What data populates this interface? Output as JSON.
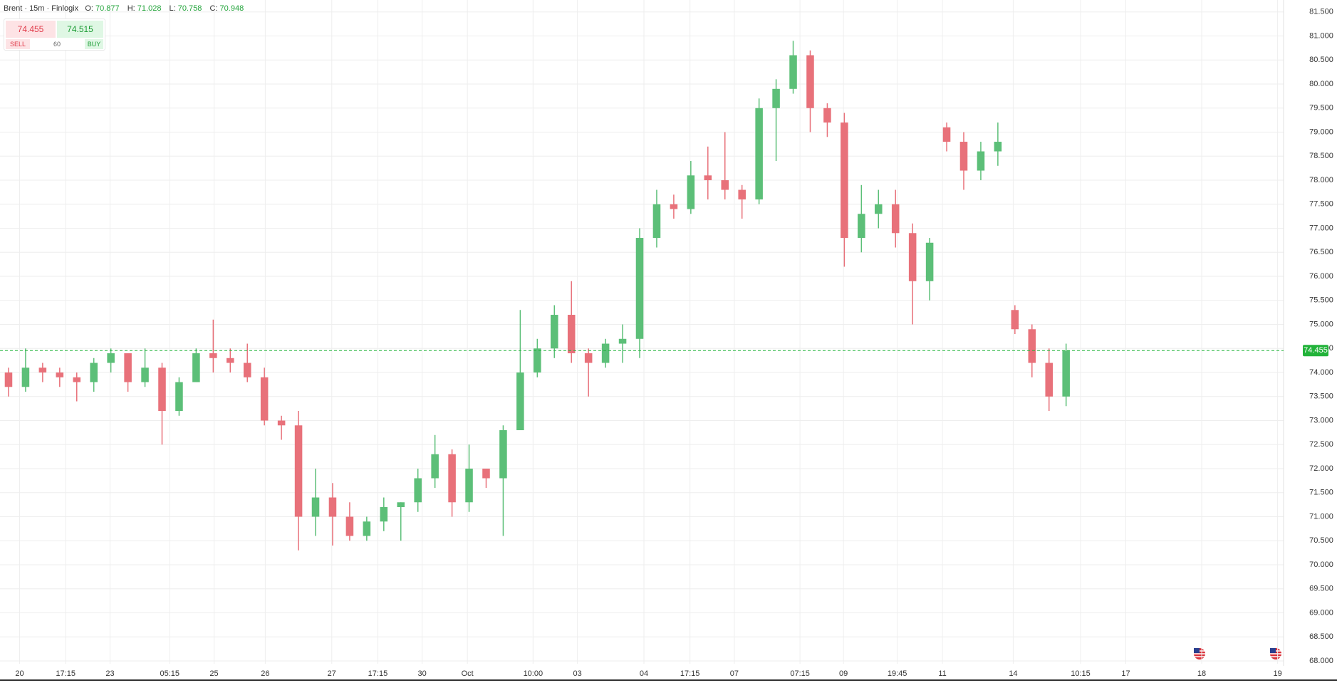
{
  "header": {
    "symbol": "Brent · 15m · Finlogix",
    "o_label": "O:",
    "o": 70.877,
    "h_label": "H:",
    "h": 71.028,
    "l_label": "L:",
    "l": 70.758,
    "c_label": "C:",
    "c": 70.948
  },
  "trade": {
    "sell_price": 74.455,
    "buy_price": 74.515,
    "sell": "SELL",
    "buy": "BUY",
    "quantity": 60
  },
  "chart_data": {
    "type": "candlestick",
    "up_color": "#5cbf78",
    "down_color": "#e8717a",
    "open": [
      74.0,
      73.7,
      74.1,
      74.0,
      73.9,
      73.8,
      74.2,
      74.4,
      73.8,
      74.1,
      73.2,
      73.8,
      74.4,
      74.3,
      74.2,
      73.9,
      73.0,
      72.9,
      71.0,
      71.4,
      71.0,
      70.6,
      70.9,
      71.2,
      71.3,
      71.8,
      72.3,
      71.3,
      72.0,
      71.8,
      72.8,
      74.0,
      74.5,
      75.2,
      74.4,
      74.2,
      74.6,
      74.7,
      76.8,
      77.5,
      77.4,
      78.1,
      78.0,
      77.8,
      77.6,
      79.5,
      79.9,
      80.6,
      79.5,
      79.2,
      76.8,
      77.3,
      77.5,
      76.9,
      75.9,
      79.1,
      78.8,
      78.2,
      78.6,
      75.3,
      74.9,
      74.2,
      73.5
    ],
    "high": [
      74.1,
      74.5,
      74.2,
      74.1,
      74.0,
      74.3,
      74.5,
      74.4,
      74.5,
      74.2,
      73.9,
      74.5,
      75.1,
      74.5,
      74.6,
      74.1,
      73.1,
      73.2,
      72.0,
      71.7,
      71.3,
      71.0,
      71.4,
      71.3,
      72.0,
      72.7,
      72.4,
      72.5,
      72.0,
      72.9,
      75.3,
      74.7,
      75.4,
      75.9,
      74.5,
      74.7,
      75.0,
      77.0,
      77.8,
      77.7,
      78.4,
      78.7,
      79.0,
      77.9,
      79.7,
      80.1,
      80.9,
      80.7,
      79.6,
      79.4,
      77.9,
      77.8,
      77.8,
      77.1,
      76.8,
      79.2,
      79.0,
      78.8,
      79.2,
      75.4,
      75.0,
      74.5,
      74.6
    ],
    "low": [
      73.5,
      73.6,
      73.8,
      73.7,
      73.4,
      73.6,
      74.0,
      73.6,
      73.7,
      72.5,
      73.1,
      73.8,
      74.0,
      74.0,
      73.8,
      72.9,
      72.6,
      70.3,
      70.6,
      70.4,
      70.5,
      70.5,
      70.7,
      70.5,
      71.1,
      71.6,
      71.0,
      71.1,
      71.6,
      70.6,
      72.8,
      73.9,
      74.3,
      74.2,
      73.5,
      74.1,
      74.2,
      74.3,
      76.6,
      77.2,
      77.3,
      77.6,
      77.6,
      77.2,
      77.5,
      78.4,
      79.8,
      79.0,
      78.9,
      76.2,
      76.5,
      77.0,
      76.6,
      75.0,
      75.5,
      78.6,
      77.8,
      78.0,
      78.3,
      74.8,
      73.9,
      73.2,
      73.3
    ],
    "close": [
      73.7,
      74.1,
      74.0,
      73.9,
      73.8,
      74.2,
      74.4,
      73.8,
      74.1,
      73.2,
      73.8,
      74.4,
      74.3,
      74.2,
      73.9,
      73.0,
      72.9,
      71.0,
      71.4,
      71.0,
      70.6,
      70.9,
      71.2,
      71.3,
      71.8,
      72.3,
      71.3,
      72.0,
      71.8,
      72.8,
      74.0,
      74.5,
      75.2,
      74.4,
      74.2,
      74.6,
      74.7,
      76.8,
      77.5,
      77.4,
      78.1,
      78.0,
      77.8,
      77.6,
      79.5,
      79.9,
      80.6,
      79.5,
      79.2,
      76.8,
      77.3,
      77.5,
      76.9,
      75.9,
      76.7,
      78.8,
      78.2,
      78.6,
      78.8,
      74.9,
      74.2,
      73.5,
      74.455
    ],
    "last_price": {
      "value": 74.455,
      "label": "74.455"
    },
    "last_color": "#22b33a",
    "xlim": [
      0,
      75.25
    ],
    "xticks": [
      {
        "value": 1.15,
        "label": "20"
      },
      {
        "value": 3.85,
        "label": "17:15"
      },
      {
        "value": 6.45,
        "label": "23"
      },
      {
        "value": 9.95,
        "label": "05:15"
      },
      {
        "value": 12.55,
        "label": "25"
      },
      {
        "value": 15.55,
        "label": "26"
      },
      {
        "value": 19.45,
        "label": "27"
      },
      {
        "value": 22.15,
        "label": "17:15"
      },
      {
        "value": 24.75,
        "label": "30"
      },
      {
        "value": 27.4,
        "label": "Oct"
      },
      {
        "value": 31.25,
        "label": "10:00"
      },
      {
        "value": 33.85,
        "label": "03"
      },
      {
        "value": 37.75,
        "label": "04"
      },
      {
        "value": 40.45,
        "label": "17:15"
      },
      {
        "value": 43.05,
        "label": "07"
      },
      {
        "value": 46.9,
        "label": "07:15"
      },
      {
        "value": 49.45,
        "label": "09"
      },
      {
        "value": 52.6,
        "label": "19:45"
      },
      {
        "value": 55.25,
        "label": "11"
      },
      {
        "value": 59.4,
        "label": "14"
      },
      {
        "value": 63.35,
        "label": "10:15"
      },
      {
        "value": 66,
        "label": "17"
      },
      {
        "value": 70.45,
        "label": "18"
      },
      {
        "value": 74.9,
        "label": "19"
      }
    ],
    "ylim": [
      68,
      81.5
    ],
    "yticks": [
      {
        "value": 68,
        "label": "68.000"
      },
      {
        "value": 68.5,
        "label": "68.500"
      },
      {
        "value": 69,
        "label": "69.000"
      },
      {
        "value": 69.5,
        "label": "69.500"
      },
      {
        "value": 70,
        "label": "70.000"
      },
      {
        "value": 70.5,
        "label": "70.500"
      },
      {
        "value": 71,
        "label": "71.000"
      },
      {
        "value": 71.5,
        "label": "71.500"
      },
      {
        "value": 72,
        "label": "72.000"
      },
      {
        "value": 72.5,
        "label": "72.500"
      },
      {
        "value": 73,
        "label": "73.000"
      },
      {
        "value": 73.5,
        "label": "73.500"
      },
      {
        "value": 74,
        "label": "74.000"
      },
      {
        "value": 74.5,
        "label": "74.500"
      },
      {
        "value": 75,
        "label": "75.000"
      },
      {
        "value": 75.5,
        "label": "75.500"
      },
      {
        "value": 76,
        "label": "76.000"
      },
      {
        "value": 76.5,
        "label": "76.500"
      },
      {
        "value": 77,
        "label": "77.000"
      },
      {
        "value": 77.5,
        "label": "77.500"
      },
      {
        "value": 78,
        "label": "78.000"
      },
      {
        "value": 78.5,
        "label": "78.500"
      },
      {
        "value": 79,
        "label": "79.000"
      },
      {
        "value": 79.5,
        "label": "79.500"
      },
      {
        "value": 80,
        "label": "80.000"
      },
      {
        "value": 80.5,
        "label": "80.500"
      },
      {
        "value": 81,
        "label": "81.000"
      },
      {
        "value": 81.5,
        "label": "81.500"
      }
    ],
    "grid": true
  }
}
